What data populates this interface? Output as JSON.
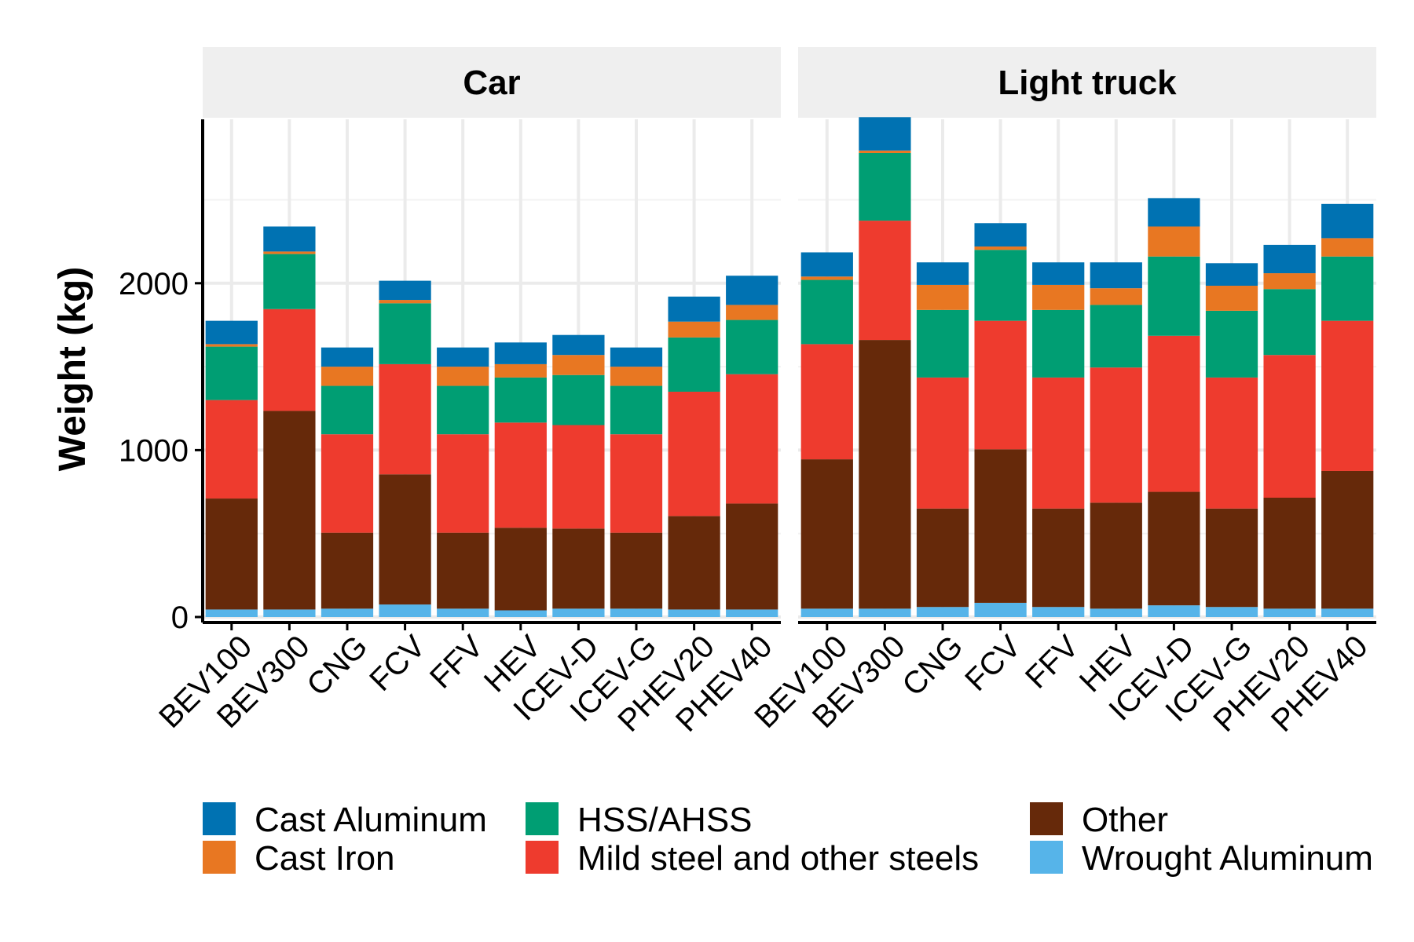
{
  "chart_data": {
    "type": "bar",
    "stacked": true,
    "ylabel": "Weight (kg)",
    "xlabel": "",
    "ylim": [
      0,
      3000
    ],
    "yticks": [
      0,
      1000,
      2000
    ],
    "grid": true,
    "legend_position": "bottom",
    "categories": [
      "BEV100",
      "BEV300",
      "CNG",
      "FCV",
      "FFV",
      "HEV",
      "ICEV-D",
      "ICEV-G",
      "PHEV20",
      "PHEV40"
    ],
    "series_order": [
      "Wrought Aluminum",
      "Other",
      "Mild steel and other steels",
      "HSS/AHSS",
      "Cast Iron",
      "Cast Aluminum"
    ],
    "legend": [
      {
        "name": "Cast Aluminum",
        "color": "#0072B2"
      },
      {
        "name": "Cast Iron",
        "color": "#E87722"
      },
      {
        "name": "HSS/AHSS",
        "color": "#009E73"
      },
      {
        "name": "Mild steel and other steels",
        "color": "#EE3B2E"
      },
      {
        "name": "Other",
        "color": "#66290A"
      },
      {
        "name": "Wrought Aluminum",
        "color": "#56B4E9"
      }
    ],
    "panels": [
      {
        "title": "Car",
        "series": [
          {
            "name": "Wrought Aluminum",
            "values": [
              45,
              45,
              50,
              75,
              50,
              40,
              50,
              50,
              45,
              45
            ]
          },
          {
            "name": "Other",
            "values": [
              665,
              1190,
              455,
              780,
              455,
              495,
              480,
              455,
              560,
              635
            ]
          },
          {
            "name": "Mild steel and other steels",
            "values": [
              590,
              610,
              590,
              660,
              590,
              630,
              620,
              590,
              745,
              775
            ]
          },
          {
            "name": "HSS/AHSS",
            "values": [
              320,
              330,
              290,
              365,
              290,
              270,
              300,
              290,
              325,
              325
            ]
          },
          {
            "name": "Cast Iron",
            "values": [
              15,
              15,
              115,
              20,
              115,
              80,
              120,
              115,
              95,
              90
            ]
          },
          {
            "name": "Cast Aluminum",
            "values": [
              140,
              150,
              115,
              115,
              115,
              130,
              120,
              115,
              150,
              175
            ]
          }
        ]
      },
      {
        "title": "Light truck",
        "series": [
          {
            "name": "Wrought Aluminum",
            "values": [
              50,
              50,
              60,
              85,
              60,
              50,
              70,
              60,
              50,
              50
            ]
          },
          {
            "name": "Other",
            "values": [
              895,
              1610,
              590,
              920,
              590,
              635,
              680,
              590,
              665,
              825
            ]
          },
          {
            "name": "Mild steel and other steels",
            "values": [
              690,
              715,
              785,
              770,
              785,
              810,
              935,
              785,
              855,
              900
            ]
          },
          {
            "name": "HSS/AHSS",
            "values": [
              385,
              405,
              405,
              425,
              405,
              375,
              475,
              400,
              395,
              385
            ]
          },
          {
            "name": "Cast Iron",
            "values": [
              20,
              15,
              150,
              20,
              150,
              100,
              180,
              150,
              95,
              110
            ]
          },
          {
            "name": "Cast Aluminum",
            "values": [
              145,
              200,
              135,
              140,
              135,
              155,
              170,
              135,
              170,
              205
            ]
          }
        ]
      }
    ]
  }
}
